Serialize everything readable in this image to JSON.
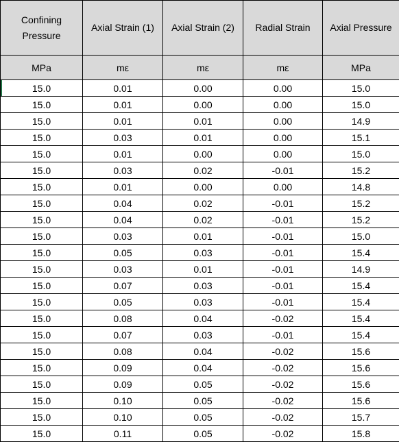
{
  "headers": [
    "Confining Pressure",
    "Axial Strain (1)",
    "Axial Strain (2)",
    "Radial Strain",
    "Axial Pressure"
  ],
  "units": [
    "MPa",
    "mε",
    "mε",
    "mε",
    "MPa"
  ],
  "rows": [
    [
      "15.0",
      "0.01",
      "0.00",
      "0.00",
      "15.0"
    ],
    [
      "15.0",
      "0.01",
      "0.00",
      "0.00",
      "15.0"
    ],
    [
      "15.0",
      "0.01",
      "0.01",
      "0.00",
      "14.9"
    ],
    [
      "15.0",
      "0.03",
      "0.01",
      "0.00",
      "15.1"
    ],
    [
      "15.0",
      "0.01",
      "0.00",
      "0.00",
      "15.0"
    ],
    [
      "15.0",
      "0.03",
      "0.02",
      "-0.01",
      "15.2"
    ],
    [
      "15.0",
      "0.01",
      "0.00",
      "0.00",
      "14.8"
    ],
    [
      "15.0",
      "0.04",
      "0.02",
      "-0.01",
      "15.2"
    ],
    [
      "15.0",
      "0.04",
      "0.02",
      "-0.01",
      "15.2"
    ],
    [
      "15.0",
      "0.03",
      "0.01",
      "-0.01",
      "15.0"
    ],
    [
      "15.0",
      "0.05",
      "0.03",
      "-0.01",
      "15.4"
    ],
    [
      "15.0",
      "0.03",
      "0.01",
      "-0.01",
      "14.9"
    ],
    [
      "15.0",
      "0.07",
      "0.03",
      "-0.01",
      "15.4"
    ],
    [
      "15.0",
      "0.05",
      "0.03",
      "-0.01",
      "15.4"
    ],
    [
      "15.0",
      "0.08",
      "0.04",
      "-0.02",
      "15.4"
    ],
    [
      "15.0",
      "0.07",
      "0.03",
      "-0.01",
      "15.4"
    ],
    [
      "15.0",
      "0.08",
      "0.04",
      "-0.02",
      "15.6"
    ],
    [
      "15.0",
      "0.09",
      "0.04",
      "-0.02",
      "15.6"
    ],
    [
      "15.0",
      "0.09",
      "0.05",
      "-0.02",
      "15.6"
    ],
    [
      "15.0",
      "0.10",
      "0.05",
      "-0.02",
      "15.6"
    ],
    [
      "15.0",
      "0.10",
      "0.05",
      "-0.02",
      "15.7"
    ],
    [
      "15.0",
      "0.11",
      "0.05",
      "-0.02",
      "15.8"
    ]
  ]
}
